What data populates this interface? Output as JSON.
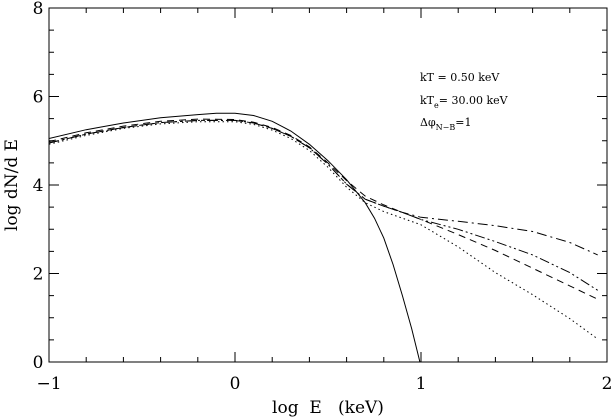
{
  "chart_data": {
    "type": "line",
    "title": "",
    "xlabel": "log  E   (keV)",
    "ylabel": "log dN/d E",
    "xlim": [
      -1,
      2
    ],
    "ylim": [
      0,
      8
    ],
    "xticks": [
      -1,
      0,
      1,
      2
    ],
    "yticks": [
      0,
      2,
      4,
      6,
      8
    ],
    "xtick_labels": [
      "−1",
      "0",
      "1",
      "2"
    ],
    "ytick_labels": [
      "0",
      "2",
      "4",
      "6",
      "8"
    ],
    "grid": false,
    "annotations": [
      {
        "text": "kT = 0.50 keV"
      },
      {
        "text": "kT",
        "sub": "e",
        "rest": "= 30.00 keV"
      },
      {
        "text": "Δφ",
        "sub": "N−B",
        "rest": "=1"
      }
    ],
    "series": [
      {
        "style": "solid",
        "x": [
          -1.0,
          -0.8,
          -0.6,
          -0.4,
          -0.2,
          -0.1,
          0.0,
          0.1,
          0.2,
          0.3,
          0.4,
          0.5,
          0.6,
          0.7,
          0.75,
          0.8,
          0.85,
          0.9,
          0.95,
          1.0
        ],
        "y": [
          5.05,
          5.25,
          5.4,
          5.52,
          5.59,
          5.62,
          5.62,
          5.57,
          5.44,
          5.22,
          4.92,
          4.55,
          4.12,
          3.6,
          3.25,
          2.8,
          2.2,
          1.5,
          0.75,
          -0.1
        ]
      },
      {
        "style": "dashed",
        "x": [
          -1.0,
          -0.8,
          -0.6,
          -0.4,
          -0.2,
          0.0,
          0.1,
          0.2,
          0.3,
          0.4,
          0.5,
          0.6,
          0.7,
          0.8,
          0.9,
          1.0,
          1.2,
          1.4,
          1.6,
          1.8,
          1.95
        ],
        "y": [
          4.98,
          5.18,
          5.33,
          5.44,
          5.49,
          5.48,
          5.42,
          5.3,
          5.12,
          4.86,
          4.5,
          4.1,
          3.75,
          3.55,
          3.38,
          3.22,
          2.88,
          2.52,
          2.12,
          1.72,
          1.42
        ]
      },
      {
        "style": "dash-dot",
        "x": [
          -1.0,
          -0.8,
          -0.6,
          -0.4,
          -0.2,
          0.0,
          0.1,
          0.2,
          0.3,
          0.4,
          0.5,
          0.6,
          0.7,
          0.8,
          0.9,
          1.0,
          1.2,
          1.4,
          1.6,
          1.8,
          1.95
        ],
        "y": [
          4.95,
          5.15,
          5.3,
          5.41,
          5.46,
          5.46,
          5.4,
          5.28,
          5.1,
          4.84,
          4.47,
          4.02,
          3.68,
          3.52,
          3.38,
          3.27,
          3.18,
          3.08,
          2.95,
          2.7,
          2.42
        ]
      },
      {
        "style": "dash-dot-dot",
        "x": [
          -1.0,
          -0.8,
          -0.6,
          -0.4,
          -0.2,
          0.0,
          0.1,
          0.2,
          0.3,
          0.4,
          0.5,
          0.6,
          0.7,
          0.8,
          0.9,
          1.0,
          1.2,
          1.4,
          1.6,
          1.8,
          1.95
        ],
        "y": [
          4.95,
          5.15,
          5.3,
          5.41,
          5.46,
          5.46,
          5.4,
          5.28,
          5.1,
          4.84,
          4.47,
          4.02,
          3.68,
          3.52,
          3.38,
          3.22,
          3.0,
          2.72,
          2.42,
          2.02,
          1.62
        ]
      },
      {
        "style": "dotted",
        "x": [
          -1.0,
          -0.8,
          -0.6,
          -0.4,
          -0.2,
          0.0,
          0.1,
          0.2,
          0.3,
          0.4,
          0.5,
          0.6,
          0.7,
          0.8,
          0.9,
          1.0,
          1.2,
          1.4,
          1.6,
          1.8,
          1.95
        ],
        "y": [
          4.92,
          5.12,
          5.28,
          5.38,
          5.43,
          5.43,
          5.37,
          5.24,
          5.05,
          4.78,
          4.4,
          3.95,
          3.6,
          3.4,
          3.25,
          3.1,
          2.6,
          2.02,
          1.52,
          0.98,
          0.52
        ]
      }
    ]
  }
}
